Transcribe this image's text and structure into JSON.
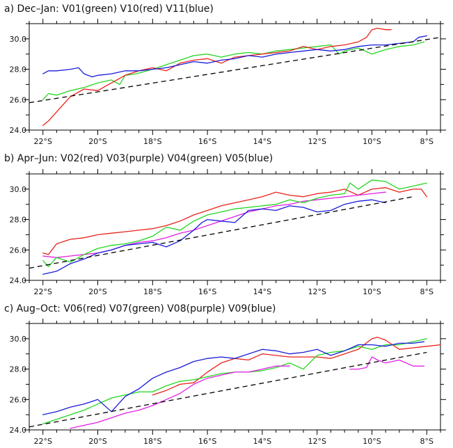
{
  "colors": {
    "red": "#e8221b",
    "green": "#22d61e",
    "blue": "#1a1adc",
    "purple": "#e020e6",
    "fit": "#000000"
  },
  "chart_data": [
    {
      "type": "line",
      "title": "a) Dec–Jan: V01(green) V10(red) V11(blue)",
      "xlabel": "",
      "ylabel": "",
      "xlim": [
        -22.5,
        -7.5
      ],
      "ylim": [
        24.0,
        31.0
      ],
      "x_ticks": [
        -22,
        -20,
        -18,
        -16,
        -14,
        -12,
        -10,
        -8
      ],
      "x_tick_labels": [
        "22°S",
        "20°S",
        "18°S",
        "16°S",
        "14°S",
        "12°S",
        "10°S",
        "8°S"
      ],
      "y_ticks": [
        24.0,
        26.0,
        28.0,
        30.0
      ],
      "y_tick_labels": [
        "24.0",
        "26.0",
        "28.0",
        "30.0"
      ],
      "grid": false,
      "series": [
        {
          "color": "green",
          "x": [
            -22.0,
            -21.8,
            -21.5,
            -21.0,
            -20.5,
            -20.0,
            -19.5,
            -19.2,
            -19.0,
            -18.6,
            -18.0,
            -17.5,
            -17.0,
            -16.5,
            -16.0,
            -15.5,
            -15.0,
            -14.5,
            -14.0,
            -13.5,
            -13.0,
            -12.5,
            -12.0,
            -11.5,
            -11.2,
            -11.0,
            -10.5,
            -10.0,
            -9.5,
            -9.0,
            -8.5,
            -8.1
          ],
          "y": [
            26.0,
            26.4,
            26.3,
            26.6,
            26.8,
            27.1,
            27.3,
            27.0,
            27.6,
            27.7,
            28.0,
            28.3,
            28.6,
            28.9,
            29.0,
            28.8,
            29.0,
            29.1,
            29.0,
            29.2,
            29.3,
            29.4,
            29.5,
            29.6,
            29.0,
            29.2,
            29.4,
            29.0,
            29.3,
            29.5,
            29.6,
            29.8
          ]
        },
        {
          "color": "red",
          "x": [
            -22.0,
            -21.8,
            -21.5,
            -21.2,
            -21.0,
            -20.5,
            -20.0,
            -19.5,
            -19.0,
            -18.5,
            -18.0,
            -17.5,
            -17.0,
            -16.5,
            -16.0,
            -15.5,
            -15.0,
            -14.5,
            -14.0,
            -13.5,
            -13.0,
            -12.5,
            -12.0,
            -11.5,
            -11.0,
            -10.5,
            -10.2,
            -10.0,
            -9.8,
            -9.5,
            -9.3
          ],
          "y": [
            24.3,
            24.6,
            25.2,
            25.8,
            26.2,
            26.7,
            26.6,
            27.1,
            27.6,
            27.9,
            28.1,
            27.9,
            28.4,
            28.6,
            28.7,
            28.4,
            28.8,
            28.9,
            29.0,
            29.1,
            29.2,
            29.5,
            29.3,
            29.5,
            29.6,
            29.8,
            30.1,
            30.6,
            30.7,
            30.6,
            30.6
          ]
        },
        {
          "color": "blue",
          "x": [
            -22.0,
            -21.8,
            -21.5,
            -21.0,
            -20.7,
            -20.5,
            -20.2,
            -20.0,
            -19.5,
            -19.0,
            -18.5,
            -18.0,
            -17.5,
            -17.0,
            -16.5,
            -16.0,
            -15.5,
            -15.0,
            -14.5,
            -14.0,
            -13.5,
            -13.0,
            -12.5,
            -12.0,
            -11.5,
            -11.0,
            -10.5,
            -10.0,
            -9.5,
            -9.0,
            -8.5,
            -8.3,
            -8.0
          ],
          "y": [
            27.7,
            27.9,
            27.9,
            28.0,
            28.1,
            27.7,
            27.5,
            27.6,
            27.7,
            27.9,
            27.9,
            28.0,
            28.1,
            28.3,
            28.5,
            28.4,
            28.6,
            28.7,
            28.9,
            28.8,
            29.0,
            29.1,
            29.2,
            29.3,
            29.2,
            29.3,
            29.5,
            29.6,
            29.6,
            29.7,
            29.8,
            30.1,
            30.2
          ]
        }
      ],
      "fit": {
        "x": [
          -22.5,
          -7.5
        ],
        "y": [
          25.8,
          30.1
        ]
      }
    },
    {
      "type": "line",
      "title": "b) Apr–Jun: V02(red) V03(purple) V04(green) V05(blue)",
      "xlabel": "",
      "ylabel": "",
      "xlim": [
        -22.5,
        -7.5
      ],
      "ylim": [
        24.0,
        31.0
      ],
      "x_ticks": [
        -22,
        -20,
        -18,
        -16,
        -14,
        -12,
        -10,
        -8
      ],
      "x_tick_labels": [
        "22°S",
        "20°S",
        "18°S",
        "16°S",
        "14°S",
        "12°S",
        "10°S",
        "8°S"
      ],
      "y_ticks": [
        24.0,
        26.0,
        28.0,
        30.0
      ],
      "y_tick_labels": [
        "24.0",
        "26.0",
        "28.0",
        "30.0"
      ],
      "grid": false,
      "series": [
        {
          "color": "red",
          "x": [
            -22.0,
            -21.8,
            -21.5,
            -21.0,
            -20.5,
            -20.0,
            -19.5,
            -19.0,
            -18.5,
            -18.0,
            -17.5,
            -17.0,
            -16.5,
            -16.0,
            -15.5,
            -15.0,
            -14.5,
            -14.0,
            -13.5,
            -13.0,
            -12.5,
            -12.0,
            -11.5,
            -11.0,
            -10.5,
            -10.0,
            -9.5,
            -9.0,
            -8.5,
            -8.2,
            -8.0
          ],
          "y": [
            25.8,
            25.7,
            26.4,
            26.7,
            26.8,
            27.0,
            27.1,
            27.2,
            27.3,
            27.4,
            27.6,
            27.9,
            28.3,
            28.6,
            28.9,
            29.1,
            29.3,
            29.5,
            29.8,
            29.6,
            29.5,
            29.7,
            29.8,
            30.0,
            29.6,
            30.0,
            30.1,
            29.8,
            30.0,
            30.0,
            29.5
          ]
        },
        {
          "color": "purple",
          "x": [
            -22.0,
            -21.5,
            -21.0,
            -20.5,
            -20.0,
            -19.5,
            -19.0,
            -18.5,
            -18.0,
            -17.5,
            -17.0,
            -16.5,
            -16.0,
            -15.5,
            -15.0,
            -14.5,
            -14.0,
            -13.5,
            -13.0,
            -12.5,
            -12.0,
            -11.5,
            -11.0,
            -10.5,
            -10.0,
            -9.5
          ],
          "y": [
            25.6,
            25.5,
            25.6,
            25.7,
            25.8,
            26.0,
            26.3,
            26.5,
            26.6,
            26.8,
            27.1,
            27.3,
            27.6,
            27.9,
            28.2,
            28.5,
            28.7,
            28.9,
            29.0,
            29.2,
            29.3,
            29.4,
            29.5,
            29.6,
            29.7,
            29.8
          ]
        },
        {
          "color": "green",
          "x": [
            -22.0,
            -21.8,
            -21.5,
            -21.0,
            -20.5,
            -20.0,
            -19.5,
            -19.0,
            -18.5,
            -18.0,
            -17.5,
            -17.0,
            -16.5,
            -16.0,
            -15.5,
            -15.0,
            -14.5,
            -14.0,
            -13.5,
            -13.0,
            -12.5,
            -12.0,
            -11.5,
            -11.0,
            -10.8,
            -10.5,
            -10.0,
            -9.5,
            -9.0,
            -8.5,
            -8.0
          ],
          "y": [
            25.3,
            24.9,
            25.5,
            25.2,
            25.7,
            26.1,
            26.3,
            26.4,
            26.6,
            26.9,
            27.5,
            27.3,
            27.9,
            28.3,
            28.5,
            28.7,
            28.8,
            28.9,
            29.0,
            29.3,
            29.1,
            29.4,
            29.6,
            29.7,
            30.4,
            30.0,
            30.6,
            30.5,
            30.0,
            30.2,
            30.4
          ]
        },
        {
          "color": "blue",
          "x": [
            -22.0,
            -21.5,
            -21.0,
            -20.5,
            -20.0,
            -19.5,
            -19.0,
            -18.5,
            -18.0,
            -17.5,
            -17.0,
            -16.5,
            -16.2,
            -16.0,
            -15.5,
            -15.0,
            -14.5,
            -14.0,
            -13.5,
            -13.0,
            -12.5,
            -12.0,
            -11.5,
            -11.0,
            -10.5,
            -10.0,
            -9.5
          ],
          "y": [
            24.4,
            24.6,
            25.1,
            25.4,
            25.8,
            26.0,
            26.3,
            26.4,
            26.5,
            26.2,
            26.6,
            27.3,
            27.8,
            28.0,
            27.9,
            27.8,
            28.6,
            28.7,
            28.6,
            28.9,
            28.8,
            28.5,
            28.6,
            29.0,
            29.2,
            29.3,
            29.1
          ]
        }
      ],
      "fit": {
        "x": [
          -22.5,
          -8.5
        ],
        "y": [
          24.8,
          29.5
        ]
      }
    },
    {
      "type": "line",
      "title": "c) Aug–Oct: V06(red) V07(green) V08(purple) V09(blue)",
      "xlabel": "",
      "ylabel": "",
      "xlim": [
        -22.5,
        -7.5
      ],
      "ylim": [
        24.0,
        31.0
      ],
      "x_ticks": [
        -22,
        -20,
        -18,
        -16,
        -14,
        -12,
        -10,
        -8
      ],
      "x_tick_labels": [
        "22°S",
        "20°S",
        "18°S",
        "16°S",
        "14°S",
        "12°S",
        "10°S",
        "8°S"
      ],
      "y_ticks": [
        24.0,
        26.0,
        28.0,
        30.0
      ],
      "y_tick_labels": [
        "24.0",
        "26.0",
        "28.0",
        "30.0"
      ],
      "grid": false,
      "series": [
        {
          "color": "red",
          "x": [
            -18.0,
            -17.5,
            -17.0,
            -16.5,
            -16.0,
            -15.5,
            -15.0,
            -14.5,
            -14.0,
            -13.5,
            -13.0,
            -12.5,
            -12.0,
            -11.5,
            -11.0,
            -10.5,
            -10.0,
            -9.8,
            -9.5,
            -9.0,
            -8.5,
            -8.0,
            -7.5
          ],
          "y": [
            26.3,
            26.6,
            27.0,
            27.1,
            27.8,
            28.4,
            28.7,
            28.6,
            29.0,
            28.9,
            28.8,
            28.8,
            28.8,
            28.7,
            29.0,
            29.3,
            30.0,
            30.1,
            29.9,
            29.3,
            29.4,
            29.5,
            29.6
          ]
        },
        {
          "color": "green",
          "x": [
            -22.0,
            -21.5,
            -21.0,
            -20.5,
            -20.0,
            -19.5,
            -19.0,
            -18.5,
            -18.0,
            -17.5,
            -17.0,
            -16.5,
            -16.0,
            -15.5,
            -15.0,
            -14.5,
            -14.0,
            -13.5,
            -13.0,
            -12.5,
            -12.0,
            -11.5,
            -11.0,
            -10.5,
            -10.0,
            -9.5,
            -9.0,
            -8.5,
            -8.0
          ],
          "y": [
            24.4,
            24.7,
            25.0,
            25.3,
            25.7,
            26.1,
            26.3,
            26.5,
            26.5,
            26.9,
            27.2,
            27.3,
            27.5,
            27.7,
            27.8,
            27.8,
            27.9,
            28.1,
            28.4,
            28.0,
            28.9,
            29.1,
            29.2,
            29.5,
            29.3,
            29.6,
            29.6,
            29.8,
            30.0
          ]
        },
        {
          "color": "purple",
          "x": [
            -21.0,
            -20.5,
            -20.0,
            -19.5,
            -19.0,
            -18.5,
            -18.0,
            -17.5,
            -17.0,
            -16.5,
            -16.0,
            -15.5,
            -15.0,
            -14.5,
            -14.0,
            -13.5,
            -13.0
          ],
          "y": [
            24.1,
            24.3,
            24.5,
            24.8,
            25.1,
            25.3,
            25.6,
            26.0,
            26.4,
            27.0,
            27.4,
            27.6,
            27.8,
            27.8,
            28.0,
            28.2,
            28.2
          ],
          "gap_after": true
        },
        {
          "color": "purple",
          "x": [
            -10.8,
            -10.5,
            -10.2,
            -10.0,
            -9.8,
            -9.5,
            -9.0,
            -8.5,
            -8.1
          ],
          "y": [
            28.0,
            28.0,
            28.1,
            28.8,
            28.6,
            28.4,
            28.6,
            28.2,
            28.2
          ]
        },
        {
          "color": "blue",
          "x": [
            -22.0,
            -21.5,
            -21.0,
            -20.5,
            -20.0,
            -19.5,
            -19.0,
            -18.5,
            -18.0,
            -17.5,
            -17.0,
            -16.5,
            -16.0,
            -15.5,
            -15.0,
            -14.5,
            -14.0,
            -13.5,
            -13.0,
            -12.5,
            -12.0,
            -11.5,
            -11.0,
            -10.5,
            -10.0,
            -9.5,
            -9.0,
            -8.5,
            -8.1
          ],
          "y": [
            25.0,
            25.2,
            25.5,
            25.7,
            26.0,
            25.2,
            26.2,
            26.7,
            27.4,
            27.8,
            28.1,
            28.5,
            28.7,
            28.8,
            28.7,
            29.0,
            29.3,
            29.2,
            29.0,
            29.1,
            29.3,
            28.9,
            29.2,
            29.6,
            29.6,
            29.5,
            29.7,
            29.7,
            29.8
          ]
        }
      ],
      "fit": {
        "x": [
          -22.5,
          -8.0
        ],
        "y": [
          24.2,
          29.1
        ]
      }
    }
  ]
}
